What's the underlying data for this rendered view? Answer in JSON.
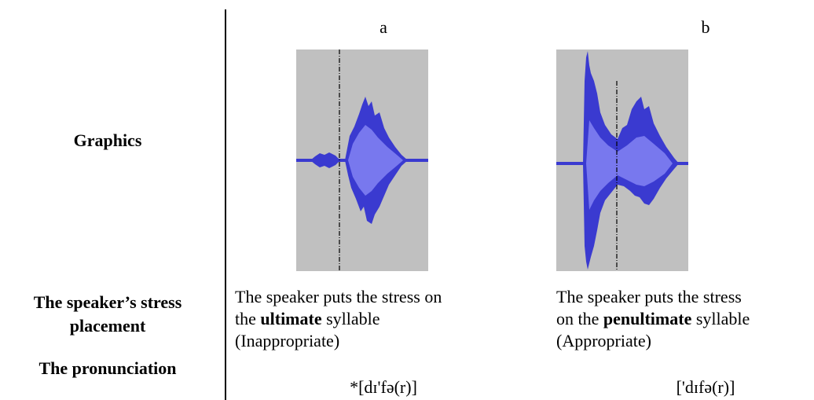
{
  "header": {
    "columns": [
      "a",
      "b"
    ]
  },
  "rows": {
    "graphics": "Graphics",
    "stress": "The speaker’s stress placement",
    "pronunciation": "The pronunciation"
  },
  "columns": [
    {
      "description_lines": [
        [
          {
            "text": "The speaker puts the stress on",
            "bold": false
          }
        ],
        [
          {
            "text": "the ",
            "bold": false
          },
          {
            "text": "ultimate",
            "bold": true
          },
          {
            "text": " syllable",
            "bold": false
          }
        ],
        [
          {
            "text": "(Inappropriate)",
            "bold": false
          }
        ]
      ],
      "pronunciation": "*[dɪ'fə(r)]"
    },
    {
      "description_lines": [
        [
          {
            "text": "The speaker puts the stress",
            "bold": false
          }
        ],
        [
          {
            "text": "on the ",
            "bold": false
          },
          {
            "text": "penultimate",
            "bold": true
          },
          {
            "text": " syllable",
            "bold": false
          }
        ],
        [
          {
            "text": "(Appropriate)",
            "bold": false
          }
        ]
      ],
      "pronunciation": "['dɪfə(r)]"
    }
  ]
}
